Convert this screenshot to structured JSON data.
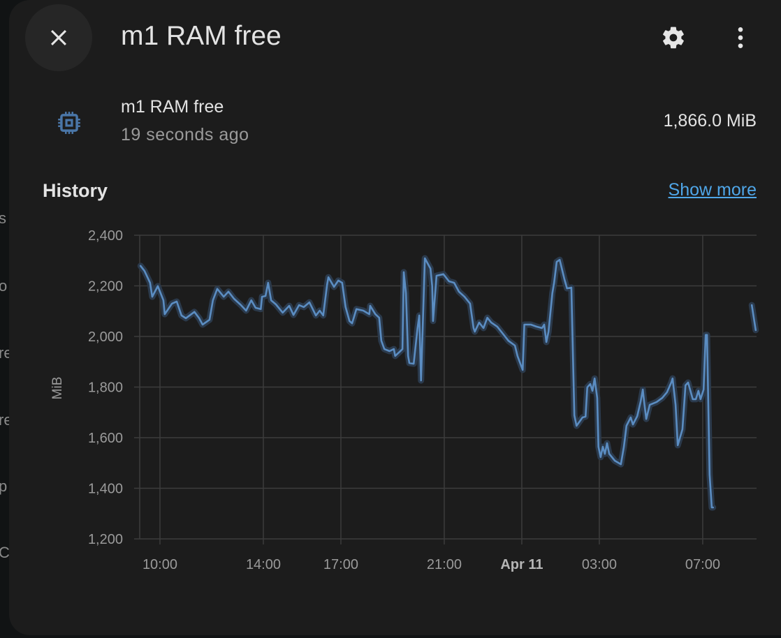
{
  "background_fragments": [
    "s",
    "o",
    "re",
    "re",
    "p",
    "C"
  ],
  "dialog": {
    "title": "m1 RAM free",
    "close_icon": "close-icon",
    "settings_icon": "gear-icon",
    "menu_icon": "dots-vertical-icon"
  },
  "entity": {
    "icon": "chip-icon",
    "name": "m1 RAM free",
    "last_changed": "19 seconds ago",
    "state": "1,866.0 MiB",
    "icon_color": "#4a76a8"
  },
  "history": {
    "heading": "History",
    "show_more": "Show more"
  },
  "chart_data": {
    "type": "line",
    "ylabel": "MiB",
    "xlabel": "",
    "ylim": [
      1200,
      2400
    ],
    "yticks": [
      "2,400",
      "2,200",
      "2,000",
      "1,800",
      "1,600",
      "1,400",
      "1,200"
    ],
    "ytick_values": [
      2400,
      2200,
      2000,
      1800,
      1600,
      1400,
      1200
    ],
    "xlim": [
      "Apr 10 09:13",
      "Apr 11 09:05"
    ],
    "xticks": [
      {
        "label": "10:00",
        "t": "Apr 10 10:00"
      },
      {
        "label": "14:00",
        "t": "Apr 10 14:00"
      },
      {
        "label": "17:00",
        "t": "Apr 10 17:00"
      },
      {
        "label": "21:00",
        "t": "Apr 10 21:00"
      },
      {
        "label": "Apr 11",
        "t": "Apr 11 00:00",
        "bold": true
      },
      {
        "label": "03:00",
        "t": "Apr 11 03:00"
      },
      {
        "label": "07:00",
        "t": "Apr 11 07:00"
      }
    ],
    "grid": true,
    "line_color": "#5b8dc2",
    "segments": [
      [
        [
          "Apr 10 09:15",
          2279
        ],
        [
          "Apr 10 09:24",
          2259
        ],
        [
          "Apr 10 09:37",
          2212
        ],
        [
          "Apr 10 09:42",
          2157
        ],
        [
          "Apr 10 09:55",
          2199
        ],
        [
          "Apr 10 10:08",
          2143
        ],
        [
          "Apr 10 10:11",
          2088
        ],
        [
          "Apr 10 10:28",
          2130
        ],
        [
          "Apr 10 10:39",
          2138
        ],
        [
          "Apr 10 10:50",
          2083
        ],
        [
          "Apr 10 11:00",
          2072
        ],
        [
          "Apr 10 11:20",
          2097
        ],
        [
          "Apr 10 11:31",
          2072
        ],
        [
          "Apr 10 11:39",
          2047
        ],
        [
          "Apr 10 11:55",
          2066
        ],
        [
          "Apr 10 12:03",
          2143
        ],
        [
          "Apr 10 12:13",
          2188
        ],
        [
          "Apr 10 12:28",
          2157
        ],
        [
          "Apr 10 12:39",
          2177
        ],
        [
          "Apr 10 12:52",
          2149
        ],
        [
          "Apr 10 13:08",
          2124
        ],
        [
          "Apr 10 13:20",
          2102
        ],
        [
          "Apr 10 13:32",
          2143
        ],
        [
          "Apr 10 13:42",
          2113
        ],
        [
          "Apr 10 13:54",
          2108
        ],
        [
          "Apr 10 13:57",
          2157
        ],
        [
          "Apr 10 14:05",
          2160
        ],
        [
          "Apr 10 14:11",
          2212
        ],
        [
          "Apr 10 14:18",
          2143
        ],
        [
          "Apr 10 14:29",
          2127
        ],
        [
          "Apr 10 14:45",
          2094
        ],
        [
          "Apr 10 15:00",
          2121
        ],
        [
          "Apr 10 15:10",
          2085
        ],
        [
          "Apr 10 15:23",
          2124
        ],
        [
          "Apr 10 15:34",
          2116
        ],
        [
          "Apr 10 15:47",
          2135
        ],
        [
          "Apr 10 16:02",
          2083
        ],
        [
          "Apr 10 16:11",
          2102
        ],
        [
          "Apr 10 16:19",
          2083
        ],
        [
          "Apr 10 16:28",
          2204
        ],
        [
          "Apr 10 16:31",
          2234
        ],
        [
          "Apr 10 16:44",
          2196
        ],
        [
          "Apr 10 16:54",
          2221
        ],
        [
          "Apr 10 17:03",
          2212
        ],
        [
          "Apr 10 17:11",
          2116
        ],
        [
          "Apr 10 17:20",
          2061
        ],
        [
          "Apr 10 17:26",
          2052
        ],
        [
          "Apr 10 17:36",
          2108
        ],
        [
          "Apr 10 17:52",
          2102
        ],
        [
          "Apr 10 18:06",
          2088
        ],
        [
          "Apr 10 18:08",
          2121
        ],
        [
          "Apr 10 18:20",
          2088
        ],
        [
          "Apr 10 18:29",
          2074
        ],
        [
          "Apr 10 18:34",
          1983
        ],
        [
          "Apr 10 18:41",
          1950
        ],
        [
          "Apr 10 18:53",
          1942
        ],
        [
          "Apr 10 19:03",
          1950
        ],
        [
          "Apr 10 19:06",
          1923
        ],
        [
          "Apr 10 19:18",
          1942
        ],
        [
          "Apr 10 19:23",
          1950
        ],
        [
          "Apr 10 19:26",
          2254
        ],
        [
          "Apr 10 19:31",
          2171
        ],
        [
          "Apr 10 19:36",
          1923
        ],
        [
          "Apr 10 19:39",
          1895
        ],
        [
          "Apr 10 19:49",
          1892
        ],
        [
          "Apr 10 19:58",
          2033
        ],
        [
          "Apr 10 20:02",
          2083
        ],
        [
          "Apr 10 20:06",
          1826
        ],
        [
          "Apr 10 20:11",
          2088
        ],
        [
          "Apr 10 20:15",
          2309
        ],
        [
          "Apr 10 20:28",
          2268
        ],
        [
          "Apr 10 20:32",
          2199
        ],
        [
          "Apr 10 20:34",
          2061
        ],
        [
          "Apr 10 20:42",
          2240
        ],
        [
          "Apr 10 20:58",
          2246
        ],
        [
          "Apr 10 21:11",
          2218
        ],
        [
          "Apr 10 21:23",
          2212
        ],
        [
          "Apr 10 21:34",
          2177
        ],
        [
          "Apr 10 21:47",
          2157
        ],
        [
          "Apr 10 22:00",
          2130
        ],
        [
          "Apr 10 22:08",
          2033
        ],
        [
          "Apr 10 22:11",
          2019
        ],
        [
          "Apr 10 22:21",
          2055
        ],
        [
          "Apr 10 22:31",
          2033
        ],
        [
          "Apr 10 22:40",
          2074
        ],
        [
          "Apr 10 22:49",
          2055
        ],
        [
          "Apr 10 23:03",
          2039
        ],
        [
          "Apr 10 23:16",
          2011
        ],
        [
          "Apr 10 23:29",
          1983
        ],
        [
          "Apr 10 23:44",
          1964
        ],
        [
          "Apr 10 23:50",
          1923
        ],
        [
          "Apr 11 00:02",
          1868
        ],
        [
          "Apr 11 00:06",
          2047
        ],
        [
          "Apr 11 00:21",
          2047
        ],
        [
          "Apr 11 00:34",
          2039
        ],
        [
          "Apr 11 00:47",
          2033
        ],
        [
          "Apr 11 00:52",
          2047
        ],
        [
          "Apr 11 00:57",
          1978
        ],
        [
          "Apr 11 01:02",
          2019
        ],
        [
          "Apr 11 01:11",
          2171
        ],
        [
          "Apr 11 01:15",
          2212
        ],
        [
          "Apr 11 01:21",
          2295
        ],
        [
          "Apr 11 01:28",
          2303
        ],
        [
          "Apr 11 01:39",
          2226
        ],
        [
          "Apr 11 01:45",
          2190
        ],
        [
          "Apr 11 01:55",
          2193
        ],
        [
          "Apr 11 02:02",
          1688
        ],
        [
          "Apr 11 02:07",
          1647
        ],
        [
          "Apr 11 02:21",
          1680
        ],
        [
          "Apr 11 02:28",
          1683
        ],
        [
          "Apr 11 02:32",
          1799
        ],
        [
          "Apr 11 02:39",
          1812
        ],
        [
          "Apr 11 02:44",
          1785
        ],
        [
          "Apr 11 02:49",
          1834
        ],
        [
          "Apr 11 02:55",
          1757
        ],
        [
          "Apr 11 02:58",
          1564
        ],
        [
          "Apr 11 03:03",
          1523
        ],
        [
          "Apr 11 03:08",
          1564
        ],
        [
          "Apr 11 03:13",
          1536
        ],
        [
          "Apr 11 03:18",
          1578
        ],
        [
          "Apr 11 03:23",
          1536
        ],
        [
          "Apr 11 03:36",
          1509
        ],
        [
          "Apr 11 03:50",
          1495
        ],
        [
          "Apr 11 03:57",
          1564
        ],
        [
          "Apr 11 04:03",
          1647
        ],
        [
          "Apr 11 04:13",
          1680
        ],
        [
          "Apr 11 04:18",
          1652
        ],
        [
          "Apr 11 04:28",
          1685
        ],
        [
          "Apr 11 04:36",
          1743
        ],
        [
          "Apr 11 04:41",
          1790
        ],
        [
          "Apr 11 04:44",
          1741
        ],
        [
          "Apr 11 04:49",
          1674
        ],
        [
          "Apr 11 04:57",
          1730
        ],
        [
          "Apr 11 05:13",
          1741
        ],
        [
          "Apr 11 05:26",
          1757
        ],
        [
          "Apr 11 05:37",
          1779
        ],
        [
          "Apr 11 05:47",
          1818
        ],
        [
          "Apr 11 05:50",
          1834
        ],
        [
          "Apr 11 05:57",
          1730
        ],
        [
          "Apr 11 06:02",
          1570
        ],
        [
          "Apr 11 06:13",
          1633
        ],
        [
          "Apr 11 06:20",
          1807
        ],
        [
          "Apr 11 06:26",
          1818
        ],
        [
          "Apr 11 06:37",
          1752
        ],
        [
          "Apr 11 06:44",
          1752
        ],
        [
          "Apr 11 06:50",
          1785
        ],
        [
          "Apr 11 06:55",
          1752
        ],
        [
          "Apr 11 07:02",
          1790
        ],
        [
          "Apr 11 07:07",
          2006
        ],
        [
          "Apr 11 07:10",
          2006
        ],
        [
          "Apr 11 07:16",
          1454
        ],
        [
          "Apr 11 07:21",
          1324
        ],
        [
          "Apr 11 07:24",
          1324
        ]
      ],
      [
        [
          "Apr 11 08:54",
          2124
        ],
        [
          "Apr 11 09:03",
          2025
        ]
      ]
    ]
  }
}
